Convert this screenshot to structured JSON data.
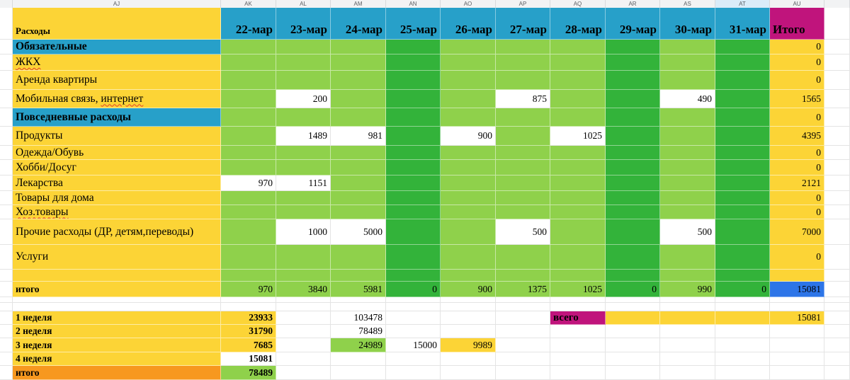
{
  "sheet": {
    "column_letters": [
      "AJ",
      "AK",
      "AL",
      "AM",
      "AN",
      "AO",
      "AP",
      "AQ",
      "AR",
      "AS",
      "AT",
      "AU"
    ],
    "highlighted_column": "AT",
    "header": {
      "title": "Расходы",
      "dates": [
        "22-мар",
        "23-мар",
        "24-мар",
        "25-мар",
        "26-мар",
        "27-мар",
        "28-мар",
        "29-мар",
        "30-мар",
        "31-мар"
      ],
      "total_label": "Итого"
    },
    "main_rows": [
      {
        "label": "Обязательные",
        "section": true,
        "values": [
          "",
          "",
          "",
          "",
          "",
          "",
          "",
          "",
          "",
          ""
        ],
        "total": "0"
      },
      {
        "label": "",
        "miss_label": "ЖКХ",
        "values": [
          "",
          "",
          "",
          "",
          "",
          "",
          "",
          "",
          "",
          ""
        ],
        "total": "0"
      },
      {
        "label": "Аренда квартиры",
        "values": [
          "",
          "",
          "",
          "",
          "",
          "",
          "",
          "",
          "",
          ""
        ],
        "total": "0"
      },
      {
        "label": "Мобильная связь, ",
        "miss_suffix": "интернет",
        "values": [
          "",
          "200",
          "",
          "",
          "",
          "875",
          "",
          "",
          "490",
          ""
        ],
        "total": "1565"
      },
      {
        "label": "Повседневные расходы",
        "section": true,
        "values": [
          "",
          "",
          "",
          "",
          "",
          "",
          "",
          "",
          "",
          ""
        ],
        "total": "0"
      },
      {
        "label": "Продукты",
        "values": [
          "",
          "1489",
          "981",
          "",
          "900",
          "",
          "1025",
          "",
          "",
          ""
        ],
        "total": "4395"
      },
      {
        "label": "Одежда/Обувь",
        "values": [
          "",
          "",
          "",
          "",
          "",
          "",
          "",
          "",
          "",
          ""
        ],
        "total": "0"
      },
      {
        "label": "Хобби/Досуг",
        "values": [
          "",
          "",
          "",
          "",
          "",
          "",
          "",
          "",
          "",
          ""
        ],
        "total": "0"
      },
      {
        "label": "Лекарства",
        "values": [
          "970",
          "1151",
          "",
          "",
          "",
          "",
          "",
          "",
          "",
          ""
        ],
        "total": "2121"
      },
      {
        "label": "Товары для дома",
        "values": [
          "",
          "",
          "",
          "",
          "",
          "",
          "",
          "",
          "",
          ""
        ],
        "total": "0"
      },
      {
        "label": "",
        "miss_label": "Хоз.товары",
        "values": [
          "",
          "",
          "",
          "",
          "",
          "",
          "",
          "",
          "",
          ""
        ],
        "total": "0"
      },
      {
        "label": "Прочие расходы (ДР, детям,переводы)",
        "values": [
          "",
          "1000",
          "5000",
          "",
          "",
          "500",
          "",
          "",
          "500",
          ""
        ],
        "total": "7000"
      },
      {
        "label": "Услуги",
        "values": [
          "",
          "",
          "",
          "",
          "",
          "",
          "",
          "",
          "",
          ""
        ],
        "total": "0"
      },
      {
        "label": "",
        "empty": true,
        "values": [
          "",
          "",
          "",
          "",
          "",
          "",
          "",
          "",
          "",
          ""
        ],
        "total": ""
      }
    ],
    "grand_row": {
      "label": "итого",
      "values": [
        "970",
        "3840",
        "5981",
        "0",
        "900",
        "1375",
        "1025",
        "0",
        "990",
        "0"
      ],
      "total": "15081"
    },
    "dark_green_date_columns": [
      "25-мар",
      "29-мар",
      "31-мар"
    ],
    "summary_rows": [
      {
        "label": "1 неделя",
        "label_bg": "y",
        "cells": [
          {
            "t": "23933",
            "bg": "y",
            "b": true
          },
          {},
          {
            "t": "103478"
          },
          {},
          {},
          {},
          {
            "t": "всего",
            "bg": "mag",
            "b": true,
            "left": true
          },
          {
            "bg": "y"
          },
          {
            "bg": "y"
          },
          {
            "bg": "y"
          },
          {
            "t": "15081",
            "bg": "y"
          }
        ]
      },
      {
        "label": "2 неделя",
        "label_bg": "y",
        "cells": [
          {
            "t": "31790",
            "bg": "y",
            "b": true
          },
          {},
          {
            "t": "78489"
          },
          {},
          {},
          {},
          {},
          {},
          {},
          {},
          {}
        ]
      },
      {
        "label": "3 неделя",
        "label_bg": "y",
        "cells": [
          {
            "t": "7685",
            "bg": "y",
            "b": true
          },
          {},
          {
            "t": "24989",
            "bg": "lg"
          },
          {
            "t": "15000"
          },
          {
            "t": "9989",
            "bg": "y"
          },
          {},
          {},
          {},
          {},
          {},
          {}
        ]
      },
      {
        "label": "4 неделя",
        "label_bg": "y",
        "cells": [
          {
            "t": "15081",
            "b": true
          },
          {},
          {},
          {},
          {},
          {},
          {},
          {},
          {},
          {},
          {}
        ]
      },
      {
        "label": "итого",
        "label_bg": "org",
        "cells": [
          {
            "t": "78489",
            "bg": "lg",
            "b": true
          },
          {},
          {},
          {},
          {},
          {},
          {},
          {},
          {},
          {},
          {}
        ]
      }
    ],
    "colors": {
      "yellow": "#fcd436",
      "light_green": "#8fd14b",
      "dark_green": "#33b33a",
      "teal": "#27a0c9",
      "magenta": "#c0147c",
      "blue": "#2d75e8",
      "orange": "#f7981f",
      "header_highlight": "#daecf9"
    }
  }
}
